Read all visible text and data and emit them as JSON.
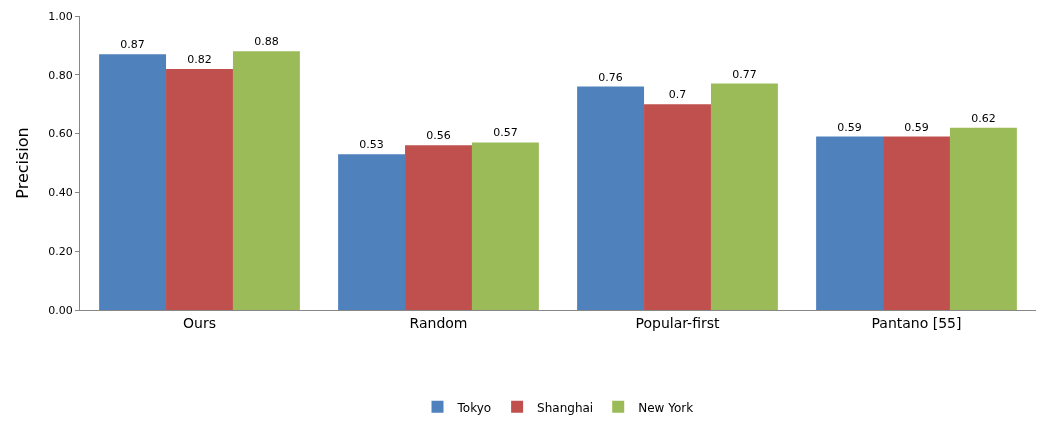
{
  "chart_data": {
    "type": "bar",
    "ylabel": "Precision",
    "categories": [
      "Ours",
      "Random",
      "Popular-first",
      "Pantano [55]"
    ],
    "series": [
      {
        "name": "Tokyo",
        "color": "#4f81bd",
        "values": [
          0.87,
          0.53,
          0.76,
          0.59
        ]
      },
      {
        "name": "Shanghai",
        "color": "#c0504d",
        "values": [
          0.82,
          0.56,
          0.7,
          0.59
        ]
      },
      {
        "name": "New York",
        "color": "#9bbb59",
        "values": [
          0.88,
          0.57,
          0.77,
          0.62
        ]
      }
    ],
    "ylim": [
      0,
      1
    ],
    "yticks": [
      {
        "value": 0,
        "label": "0.00"
      },
      {
        "value": 0.2,
        "label": "0.20"
      },
      {
        "value": 0.4,
        "label": "0.40"
      },
      {
        "value": 0.6,
        "label": "0.60"
      },
      {
        "value": 0.8,
        "label": "0.80"
      },
      {
        "value": 1,
        "label": "1.00"
      }
    ],
    "data_labels": true,
    "legend": "bottom"
  }
}
